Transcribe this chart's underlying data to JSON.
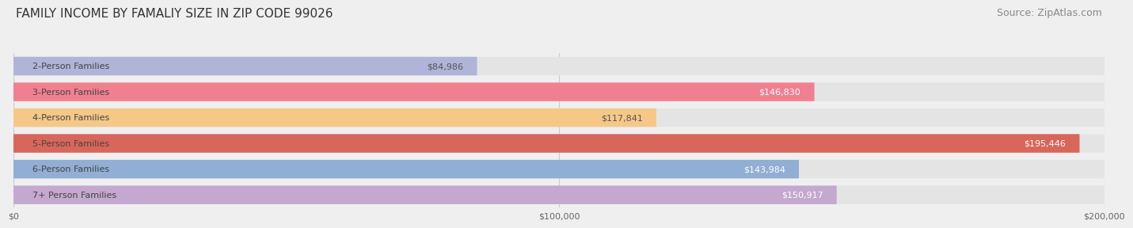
{
  "title": "FAMILY INCOME BY FAMALIY SIZE IN ZIP CODE 99026",
  "source": "Source: ZipAtlas.com",
  "categories": [
    "2-Person Families",
    "3-Person Families",
    "4-Person Families",
    "5-Person Families",
    "6-Person Families",
    "7+ Person Families"
  ],
  "values": [
    84986,
    146830,
    117841,
    195446,
    143984,
    150917
  ],
  "labels": [
    "$84,986",
    "$146,830",
    "$117,841",
    "$195,446",
    "$143,984",
    "$150,917"
  ],
  "bar_colors": [
    "#b0b4d8",
    "#f08090",
    "#f5c888",
    "#d9665a",
    "#91aed4",
    "#c4a8d0"
  ],
  "label_colors": [
    "#555555",
    "#ffffff",
    "#555555",
    "#ffffff",
    "#ffffff",
    "#ffffff"
  ],
  "background_color": "#efefef",
  "bar_bg_color": "#e4e4e4",
  "xlim": [
    0,
    200000
  ],
  "xticks": [
    0,
    100000,
    200000
  ],
  "xtick_labels": [
    "$0",
    "$100,000",
    "$200,000"
  ],
  "title_fontsize": 11,
  "source_fontsize": 9,
  "label_fontsize": 8,
  "category_fontsize": 8
}
